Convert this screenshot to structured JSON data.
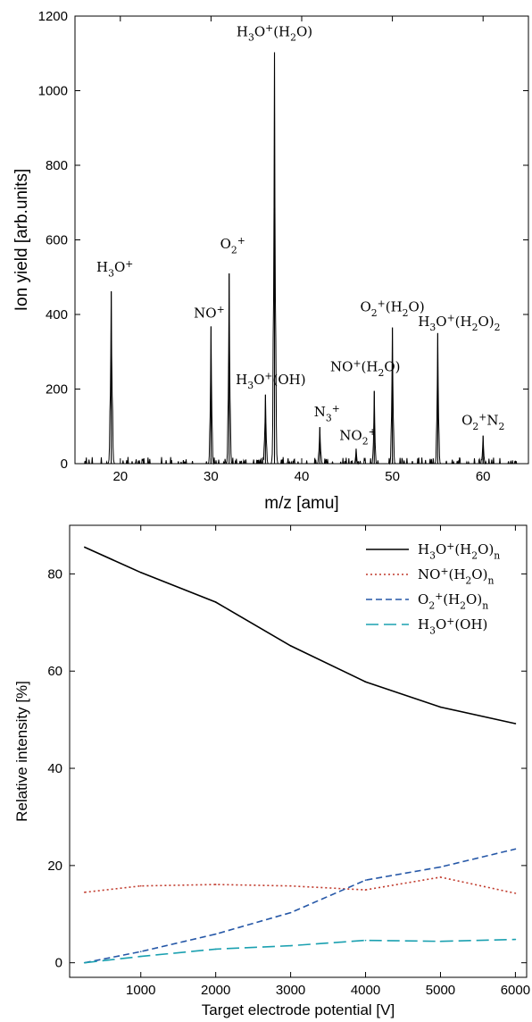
{
  "chart_data": [
    {
      "type": "line",
      "xlabel": "m/z [amu]",
      "ylabel": "Ion yield [arb.units]",
      "xlim": [
        15,
        65
      ],
      "ylim": [
        0,
        1200
      ],
      "x_ticks": [
        20,
        30,
        40,
        50,
        60
      ],
      "y_ticks": [
        0,
        200,
        400,
        600,
        800,
        1000,
        1200
      ],
      "grid": false,
      "line_color": "#000000",
      "peaks": [
        {
          "mz": 19,
          "value": 462,
          "width": 0.45,
          "label": {
            "base": "H",
            "sub1": "3",
            "mid": "O",
            "sup": "+",
            "rest": ""
          }
        },
        {
          "mz": 30,
          "value": 368,
          "width": 0.4,
          "label": {
            "base": "NO",
            "sub1": "",
            "mid": "",
            "sup": "+",
            "rest": ""
          }
        },
        {
          "mz": 32,
          "value": 510,
          "width": 0.4,
          "label": {
            "base": "O",
            "sub1": "2",
            "mid": "",
            "sup": "+",
            "rest": ""
          }
        },
        {
          "mz": 36,
          "value": 185,
          "width": 0.4,
          "label": {
            "base": "H",
            "sub1": "3",
            "mid": "O",
            "sup": "+",
            "rest": "(OH)"
          }
        },
        {
          "mz": 37,
          "value": 1103,
          "width": 0.45,
          "label": {
            "base": "H",
            "sub1": "3",
            "mid": "O",
            "sup": "+",
            "rest": "(H2O)"
          }
        },
        {
          "mz": 42,
          "value": 98,
          "width": 0.4,
          "label": {
            "base": "N",
            "sub1": "3",
            "mid": "",
            "sup": "+",
            "rest": ""
          }
        },
        {
          "mz": 46,
          "value": 40,
          "width": 0.3,
          "label": {
            "base": "NO",
            "sub1": "2",
            "mid": "",
            "sup": "+",
            "rest": ""
          }
        },
        {
          "mz": 48,
          "value": 195,
          "width": 0.35,
          "label": {
            "base": "NO",
            "sub1": "",
            "mid": "",
            "sup": "+",
            "rest": "(H2O)"
          }
        },
        {
          "mz": 50,
          "value": 365,
          "width": 0.4,
          "label": {
            "base": "O",
            "sub1": "2",
            "mid": "",
            "sup": "+",
            "rest": "(H2O)"
          }
        },
        {
          "mz": 55,
          "value": 350,
          "width": 0.4,
          "label": {
            "base": "H",
            "sub1": "3",
            "mid": "O",
            "sup": "+",
            "rest": "(H2O)2"
          }
        },
        {
          "mz": 60,
          "value": 75,
          "width": 0.35,
          "label": {
            "base": "O",
            "sub1": "2",
            "mid": "",
            "sup": "+",
            "rest": "N2"
          }
        }
      ]
    },
    {
      "type": "line",
      "xlabel": "Target electrode potential [V]",
      "ylabel": "Relative intensity [%]",
      "xlim": [
        50,
        6150
      ],
      "ylim": [
        -3,
        90
      ],
      "x_ticks": [
        1000,
        2000,
        3000,
        4000,
        5000,
        6000
      ],
      "y_ticks": [
        0,
        20,
        40,
        60,
        80
      ],
      "grid": false,
      "legend_position": "top-right",
      "x": [
        250,
        1000,
        2000,
        3000,
        4000,
        5000,
        6000
      ],
      "series": [
        {
          "legend": {
            "base": "H",
            "sub1": "3",
            "mid": "O",
            "sup": "+",
            "rest": "(H2O)n"
          },
          "color": "#000000",
          "dash": "solid",
          "values": [
            85.5,
            80.3,
            74.2,
            65.2,
            57.8,
            52.6,
            49.2
          ]
        },
        {
          "legend": {
            "base": "NO",
            "sub1": "",
            "mid": "",
            "sup": "+",
            "rest": "(H2O)n"
          },
          "color": "#c0392b",
          "dash": "dotted",
          "values": [
            14.5,
            15.8,
            16.1,
            15.8,
            15.0,
            17.6,
            14.3
          ]
        },
        {
          "legend": {
            "base": "O",
            "sub1": "2",
            "mid": "",
            "sup": "+",
            "rest": "(H2O)n"
          },
          "color": "#2557a7",
          "dash": "dashed",
          "values": [
            0.0,
            2.3,
            5.9,
            10.3,
            17.0,
            19.7,
            23.4
          ]
        },
        {
          "legend": {
            "base": "H",
            "sub1": "3",
            "mid": "O",
            "sup": "+",
            "rest": "(OH)"
          },
          "color": "#1aa0b0",
          "dash": "longdash",
          "values": [
            0.0,
            1.3,
            2.8,
            3.5,
            4.6,
            4.4,
            4.8
          ]
        }
      ]
    }
  ]
}
